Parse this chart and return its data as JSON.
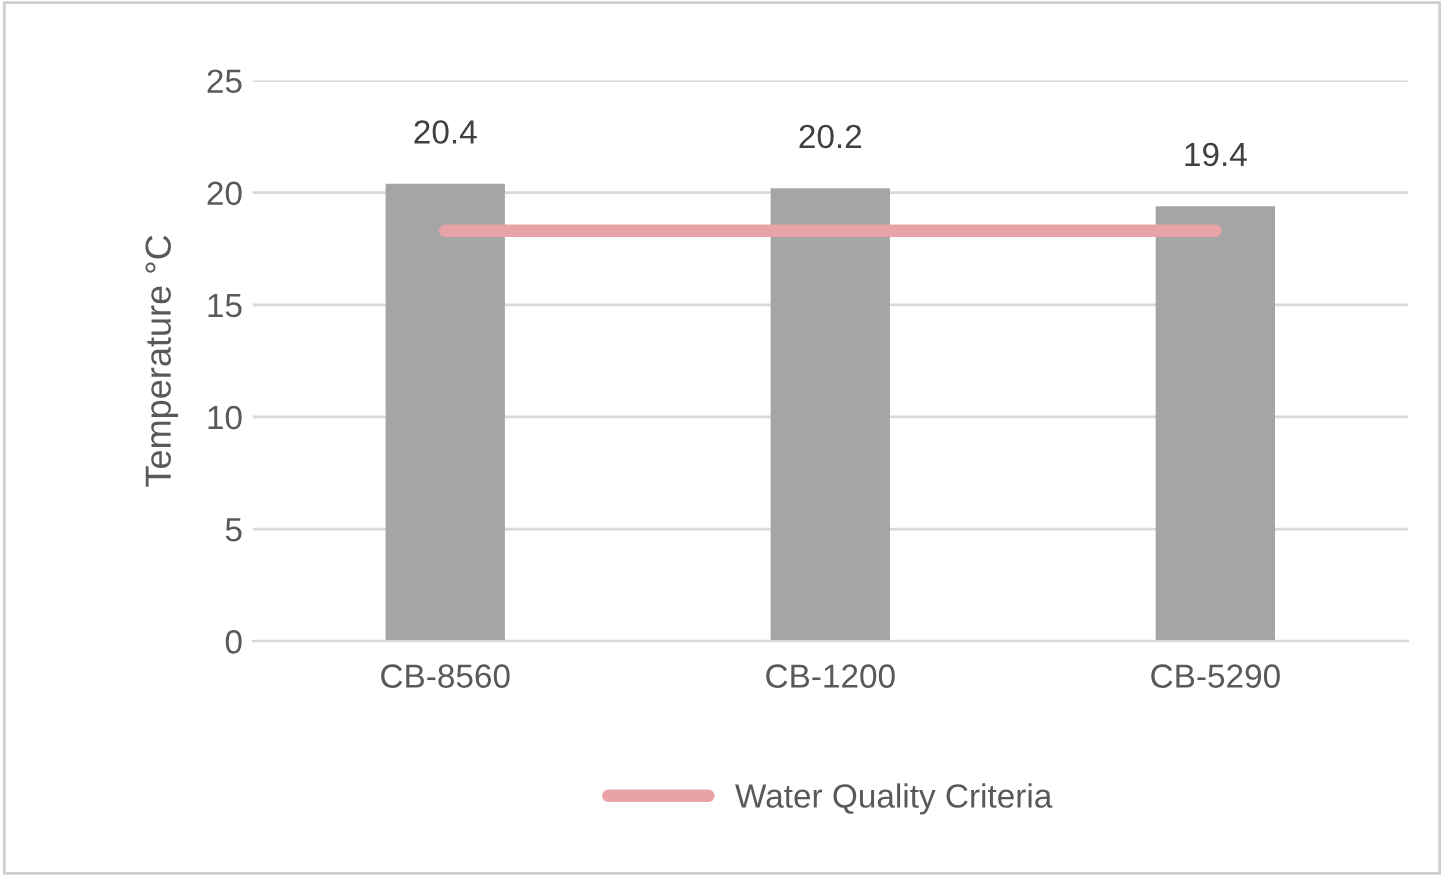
{
  "chart_data": {
    "type": "bar",
    "ylabel": "Temperature °C",
    "categories": [
      "CB-8560",
      "CB-1200",
      "CB-5290"
    ],
    "series": [
      {
        "color": "#a5a5a5",
        "values": [
          20.4,
          20.2,
          19.4
        ],
        "value_labels": [
          "20.4",
          "20.2",
          "19.4"
        ]
      },
      {
        "type": "line",
        "name": "Water Quality Criteria",
        "color": "#e9a3a6",
        "values": [
          18.3,
          18.3,
          18.3
        ]
      }
    ],
    "ylim": [
      0,
      25
    ],
    "yticks": [
      0,
      5,
      10,
      15,
      20,
      25
    ],
    "grid": "y",
    "legend": "bottom"
  }
}
